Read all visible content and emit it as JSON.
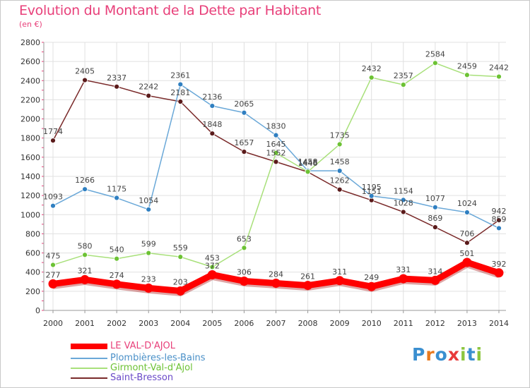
{
  "header": {
    "title": "Evolution du Montant de la Dette par Habitant",
    "unit": "(en €)"
  },
  "logo": {
    "text": "Proxiti",
    "letters": [
      "P",
      "r",
      "o",
      "x",
      "i",
      "t",
      "i"
    ],
    "letter_colors": [
      "#3a8fd0",
      "#e87a1f",
      "#3a8fd0",
      "#e83a3a",
      "#8cc63f",
      "#3a8fd0",
      "#8cc63f"
    ]
  },
  "chart_data": {
    "type": "line",
    "title": "Evolution du Montant de la Dette par Habitant",
    "subtitle": "(en €)",
    "x": [
      "2000",
      "2001",
      "2002",
      "2003",
      "2004",
      "2005",
      "2006",
      "2007",
      "2008",
      "2009",
      "2010",
      "2011",
      "2012",
      "2013",
      "2014"
    ],
    "ylim": [
      0,
      2800
    ],
    "yticks": [
      0,
      200,
      400,
      600,
      800,
      1000,
      1200,
      1400,
      1600,
      1800,
      2000,
      2200,
      2400,
      2600,
      2800
    ],
    "grid": true,
    "legend_position": "bottom-left",
    "series": [
      {
        "name": "Saint-Bresson",
        "color": "#7a2a2a",
        "marker": "#5a1a1a",
        "values": [
          1774,
          2405,
          2337,
          2242,
          2181,
          1848,
          1657,
          1552,
          1446,
          1262,
          1151,
          1028,
          869,
          706,
          942
        ],
        "labels": [
          "1774",
          "2405",
          "2337",
          "2242",
          "2181",
          "1848",
          "1657",
          "1552",
          "1446",
          "1262",
          "1151",
          "1028",
          "869",
          "706",
          "942"
        ]
      },
      {
        "name": "Plombières-les-Bains",
        "color": "#6aa8d8",
        "marker": "#2f7fc1",
        "values": [
          1093,
          1266,
          1175,
          1054,
          2361,
          2136,
          2065,
          1830,
          1458,
          1458,
          1195,
          1154,
          1077,
          1024,
          859
        ],
        "labels": [
          "1093",
          "1266",
          "1175",
          "1054",
          "2361",
          "2136",
          "2065",
          "1830",
          "1458",
          "1458",
          "1195",
          "1154",
          "1077",
          "1024",
          "859"
        ]
      },
      {
        "name": "Girmont-Val-d'Ajol",
        "color": "#a8e07a",
        "marker": "#6cc234",
        "values": [
          475,
          580,
          540,
          599,
          559,
          453,
          653,
          1645,
          1448,
          1735,
          2432,
          2357,
          2584,
          2459,
          2442
        ],
        "labels": [
          "475",
          "580",
          "540",
          "599",
          "559",
          "453",
          "653",
          "1645",
          "1448",
          "1735",
          "2432",
          "2357",
          "2584",
          "2459",
          "2442"
        ]
      },
      {
        "name": "LE VAL-D'AJOL",
        "color": "#ff0000",
        "marker": "#ff0000",
        "values": [
          277,
          321,
          274,
          233,
          203,
          372,
          306,
          284,
          261,
          311,
          249,
          331,
          314,
          501,
          392
        ],
        "labels": [
          "277",
          "321",
          "274",
          "233",
          "203",
          "372",
          "306",
          "284",
          "261",
          "311",
          "249",
          "331",
          "314",
          "501",
          "392"
        ]
      }
    ]
  },
  "legend": [
    {
      "label": "LE VAL-D'AJOL",
      "color": "#ff0000",
      "text_color": "#e8407a"
    },
    {
      "label": "Plombières-les-Bains",
      "color": "#6aa8d8",
      "text_color": "#4a90c8"
    },
    {
      "label": "Girmont-Val-d'Ajol",
      "color": "#a8e07a",
      "text_color": "#6cc234"
    },
    {
      "label": "Saint-Bresson",
      "color": "#7a2a2a",
      "text_color": "#6a4ac8"
    }
  ]
}
